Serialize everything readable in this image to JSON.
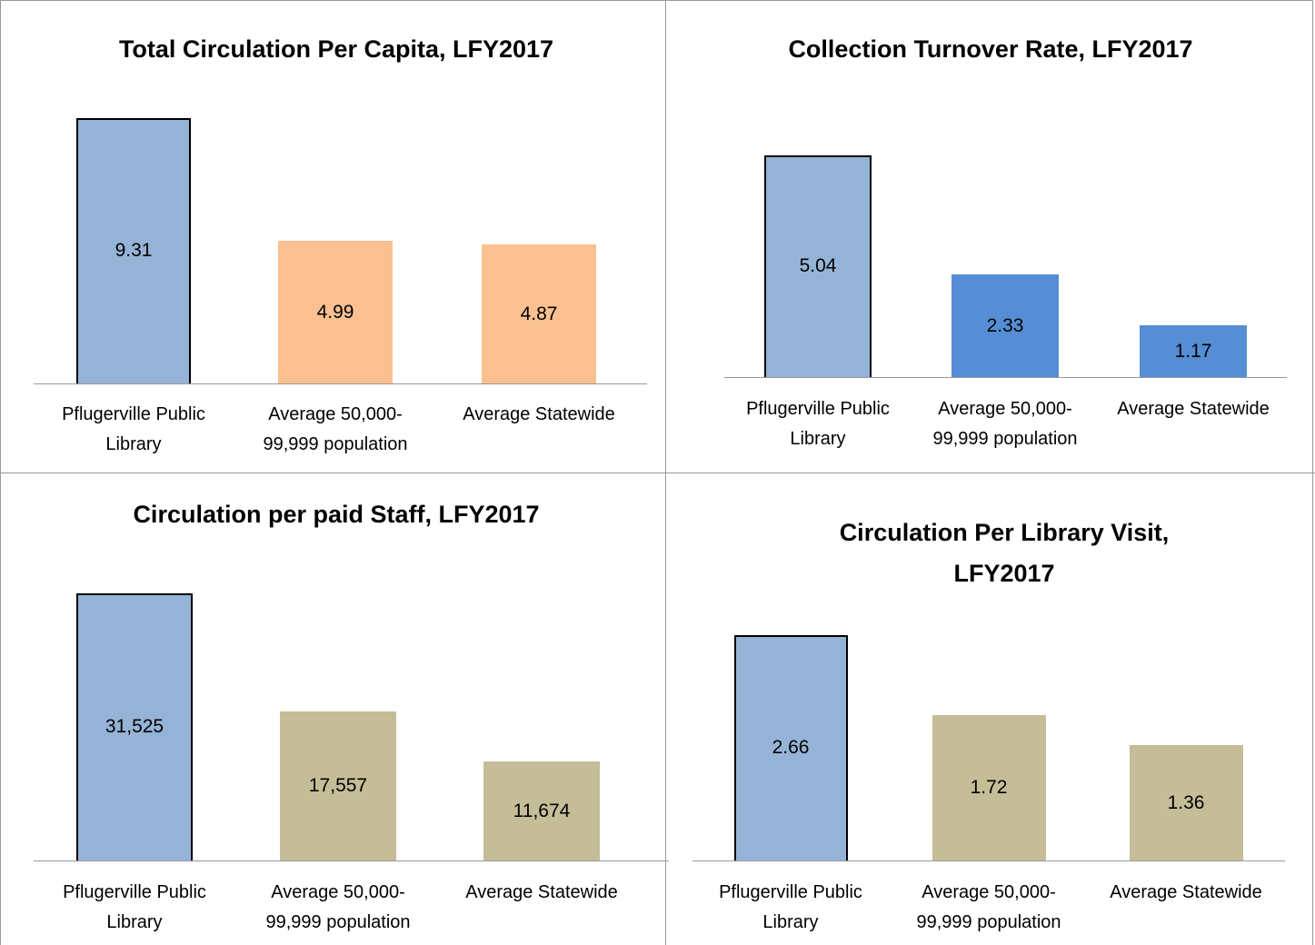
{
  "chart_data": [
    {
      "type": "bar",
      "title": "Total Circulation Per Capita, LFY2017",
      "categories": [
        "Pflugerville Public Library",
        "Average 50,000-99,999 population",
        "Average Statewide"
      ],
      "values": [
        9.31,
        4.99,
        4.87
      ],
      "colors": [
        "#95b3d7",
        "#fac090",
        "#fac090"
      ]
    },
    {
      "type": "bar",
      "title": "Collection Turnover Rate, LFY2017",
      "categories": [
        "Pflugerville Public Library",
        "Average 50,000-99,999 population",
        "Average Statewide"
      ],
      "values": [
        5.04,
        2.33,
        1.17
      ],
      "colors": [
        "#95b3d7",
        "#558ed5",
        "#558ed5"
      ]
    },
    {
      "type": "bar",
      "title": "Circulation per paid Staff, LFY2017",
      "categories": [
        "Pflugerville Public Library",
        "Average 50,000-99,999 population",
        "Average Statewide"
      ],
      "values": [
        31525,
        17557,
        11674
      ],
      "value_labels": [
        "31,525",
        "17,557",
        "11,674"
      ],
      "colors": [
        "#95b3d7",
        "#c4bd97",
        "#c4bd97"
      ]
    },
    {
      "type": "bar",
      "title": "Circulation Per Library Visit, LFY2017",
      "categories": [
        "Pflugerville Public Library",
        "Average 50,000-99,999 population",
        "Average Statewide"
      ],
      "values": [
        2.66,
        1.72,
        1.36
      ],
      "colors": [
        "#95b3d7",
        "#c4bd97",
        "#c4bd97"
      ]
    }
  ]
}
